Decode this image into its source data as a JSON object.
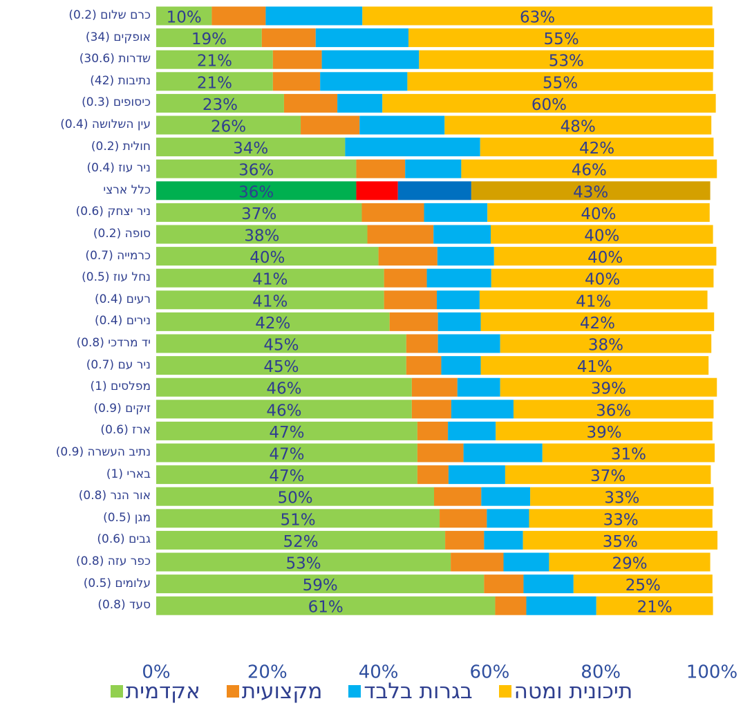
{
  "chart_data": {
    "type": "stacked_barh",
    "categories": [
      "כרם שלום (0.2)",
      "אופקים (34)",
      "שדרות (30.6)",
      "נתיבות (42)",
      "כיסופים (0.3)",
      "עין השלושה (0.4)",
      "חולית (0.2)",
      "ניר עוז (0.4)",
      "כלל ארצי",
      "ניר יצחק (0.6)",
      "סופה (0.2)",
      "כרמייה (0.7)",
      "נחל עוז (0.5)",
      "רעים (0.4)",
      "נירים (0.4)",
      "יד מרדכי (0.8)",
      "ניר עם (0.7)",
      "מפלסים (1)",
      "זיקים (0.9)",
      "ארז (0.6)",
      "נתיב העשרה (0.9)",
      "בארי (1)",
      "אור הנר (0.8)",
      "מגן (0.5)",
      "גבים (0.6)",
      "כפר עזה (0.8)",
      "עלומים (0.5)",
      "סעד (0.8)"
    ],
    "series": [
      {
        "name": "אקדמית",
        "color": "#92d050",
        "values": [
          10,
          19,
          21,
          21,
          23,
          26,
          34,
          36,
          36,
          37,
          38,
          40,
          41,
          41,
          42,
          45,
          45,
          46,
          46,
          47,
          47,
          47,
          50,
          51,
          52,
          53,
          59,
          61
        ],
        "value_labels": [
          "10%",
          "19%",
          "21%",
          "21%",
          "23%",
          "26%",
          "34%",
          "36%",
          "36%",
          "37%",
          "38%",
          "40%",
          "41%",
          "41%",
          "42%",
          "45%",
          "45%",
          "46%",
          "46%",
          "47%",
          "47%",
          "47%",
          "50%",
          "51%",
          "52%",
          "53%",
          "59%",
          "61%"
        ]
      },
      {
        "name": "מקצועית",
        "color": "#f08a1c",
        "values": [
          9.7,
          9.7,
          8.8,
          8.5,
          9.6,
          10.6,
          0,
          8.8,
          7.5,
          11.2,
          11.9,
          10.6,
          7.7,
          9.5,
          8.7,
          5.7,
          6.3,
          8.2,
          7.1,
          5.5,
          8.3,
          5.6,
          8.5,
          8.5,
          7,
          9.5,
          7.1,
          5.6
        ]
      },
      {
        "name": "בגרות בלבד",
        "color": "#00b0f0",
        "values": [
          17.4,
          16.7,
          17.5,
          15.7,
          8.1,
          15.3,
          24.3,
          10.1,
          13.2,
          11.4,
          10.3,
          10.2,
          11.6,
          7.7,
          7.7,
          11.2,
          7.1,
          7.7,
          11.2,
          8.6,
          14.2,
          10.2,
          8.8,
          7.6,
          7,
          8.2,
          9,
          12.6
        ]
      },
      {
        "name": "תיכונית ומטה",
        "color": "#ffc000",
        "values": [
          63,
          55,
          53,
          55,
          60,
          48,
          42,
          46,
          43,
          40,
          40,
          40,
          40,
          41,
          42,
          38,
          41,
          39,
          36,
          39,
          31,
          37,
          33,
          33,
          35,
          29,
          25,
          21
        ],
        "value_labels": [
          "63%",
          "55%",
          "53%",
          "55%",
          "60%",
          "48%",
          "42%",
          "46%",
          "43%",
          "40%",
          "40%",
          "40%",
          "40%",
          "41%",
          "42%",
          "38%",
          "41%",
          "39%",
          "36%",
          "39%",
          "31%",
          "37%",
          "33%",
          "33%",
          "35%",
          "29%",
          "25%",
          "21%"
        ]
      }
    ],
    "highlight_category": 8,
    "highlight_colors": [
      "#00b050",
      "#ff0000",
      "#0070c0",
      "#d4a000"
    ],
    "xlim": [
      0,
      100
    ],
    "xticks": [
      {
        "value": 0,
        "label": "0%"
      },
      {
        "value": 20,
        "label": "20%"
      },
      {
        "value": 40,
        "label": "40%"
      },
      {
        "value": 60,
        "label": "60%"
      },
      {
        "value": 80,
        "label": "80%"
      },
      {
        "value": 100,
        "label": "100%"
      }
    ],
    "legend": "bottom"
  }
}
